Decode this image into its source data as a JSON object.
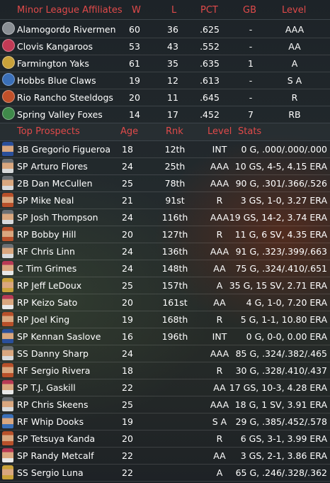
{
  "affiliates": {
    "headers": {
      "name": "Minor League Affiliates",
      "w": "W",
      "l": "L",
      "pct": "PCT",
      "gb": "GB",
      "level": "Level"
    },
    "rows": [
      {
        "name": "Alamogordo Rivermen",
        "w": "60",
        "l": "36",
        "pct": ".625",
        "gb": "-",
        "level": "AAA",
        "logo_color": "#8a8f94"
      },
      {
        "name": "Clovis Kangaroos",
        "w": "53",
        "l": "43",
        "pct": ".552",
        "gb": "-",
        "level": "AA",
        "logo_color": "#c23a55"
      },
      {
        "name": "Farmington Yaks",
        "w": "61",
        "l": "35",
        "pct": ".635",
        "gb": "1",
        "level": "A",
        "logo_color": "#c9a23a"
      },
      {
        "name": "Hobbs Blue Claws",
        "w": "19",
        "l": "12",
        "pct": ".613",
        "gb": "-",
        "level": "S A",
        "logo_color": "#3a6fb8"
      },
      {
        "name": "Rio Rancho Steeldogs",
        "w": "20",
        "l": "11",
        "pct": ".645",
        "gb": "-",
        "level": "R",
        "logo_color": "#c0502a"
      },
      {
        "name": "Spring Valley Foxes",
        "w": "14",
        "l": "17",
        "pct": ".452",
        "gb": "7",
        "level": "RB",
        "logo_color": "#3f8a4a"
      }
    ]
  },
  "prospects": {
    "headers": {
      "name": "Top Prospects",
      "age": "Age",
      "rank": "Rnk",
      "level": "Level",
      "stats": "Stats"
    },
    "rows": [
      {
        "name": "3B Gregorio Figueroa",
        "age": "18",
        "rank": "12th",
        "level": "INT",
        "stats": "0 G, .000/.000/.000",
        "cap": "#2a4f9a",
        "jersey": "#2a4f9a"
      },
      {
        "name": "SP Arturo Flores",
        "age": "24",
        "rank": "25th",
        "level": "AAA",
        "stats": "10 GS, 4-5, 4.15 ERA",
        "cap": "#6a6f74",
        "jersey": "#d8dadc"
      },
      {
        "name": "2B Dan McCullen",
        "age": "25",
        "rank": "78th",
        "level": "AAA",
        "stats": "90 G, .301/.366/.526",
        "cap": "#6a6f74",
        "jersey": "#d8dadc"
      },
      {
        "name": "SP Mike Neal",
        "age": "21",
        "rank": "91st",
        "level": "R",
        "stats": "3 GS, 1-0, 3.27 ERA",
        "cap": "#b8502a",
        "jersey": "#b8502a"
      },
      {
        "name": "SP Josh Thompson",
        "age": "24",
        "rank": "116th",
        "level": "AAA",
        "stats": "19 GS, 14-2, 3.74 ERA",
        "cap": "#6a6f74",
        "jersey": "#d8dadc"
      },
      {
        "name": "RP Bobby Hill",
        "age": "20",
        "rank": "127th",
        "level": "R",
        "stats": "11 G, 6 SV, 4.35 ERA",
        "cap": "#b8502a",
        "jersey": "#b8502a"
      },
      {
        "name": "RF Chris Linn",
        "age": "24",
        "rank": "136th",
        "level": "AAA",
        "stats": "91 G, .323/.399/.663",
        "cap": "#6a6f74",
        "jersey": "#d8dadc"
      },
      {
        "name": "C Tim Grimes",
        "age": "24",
        "rank": "148th",
        "level": "AA",
        "stats": "75 G, .324/.410/.651",
        "cap": "#b83a55",
        "jersey": "#e8e8e8"
      },
      {
        "name": "RP Jeff LeDoux",
        "age": "25",
        "rank": "157th",
        "level": "A",
        "stats": "35 G, 15 SV, 2.71 ERA",
        "cap": "#c9a23a",
        "jersey": "#c9a23a"
      },
      {
        "name": "RP Keizo Sato",
        "age": "20",
        "rank": "161st",
        "level": "AA",
        "stats": "4 G, 1-0, 7.20 ERA",
        "cap": "#b83a55",
        "jersey": "#e8e8e8"
      },
      {
        "name": "RP Joel King",
        "age": "19",
        "rank": "168th",
        "level": "R",
        "stats": "5 G, 1-1, 10.80 ERA",
        "cap": "#b8502a",
        "jersey": "#b8502a"
      },
      {
        "name": "SP Kennan Saslove",
        "age": "16",
        "rank": "196th",
        "level": "INT",
        "stats": "0 G, 0-0, 0.00 ERA",
        "cap": "#2a4f9a",
        "jersey": "#2a4f9a"
      },
      {
        "name": "SS Danny Sharp",
        "age": "24",
        "rank": "",
        "level": "AAA",
        "stats": "85 G, .324/.382/.465",
        "cap": "#6a6f74",
        "jersey": "#d8dadc"
      },
      {
        "name": "RF Sergio Rivera",
        "age": "18",
        "rank": "",
        "level": "R",
        "stats": "30 G, .328/.410/.437",
        "cap": "#b8502a",
        "jersey": "#b8502a"
      },
      {
        "name": "SP T.J. Gaskill",
        "age": "22",
        "rank": "",
        "level": "AA",
        "stats": "17 GS, 10-3, 4.28 ERA",
        "cap": "#b83a55",
        "jersey": "#e8e8e8"
      },
      {
        "name": "RP Chris Skeens",
        "age": "25",
        "rank": "",
        "level": "AAA",
        "stats": "18 G, 1 SV, 3.91 ERA",
        "cap": "#6a6f74",
        "jersey": "#d8dadc"
      },
      {
        "name": "RF Whip Dooks",
        "age": "19",
        "rank": "",
        "level": "S A",
        "stats": "29 G, .385/.452/.578",
        "cap": "#3a6fb8",
        "jersey": "#3a6fb8"
      },
      {
        "name": "SP Tetsuya Kanda",
        "age": "20",
        "rank": "",
        "level": "R",
        "stats": "6 GS, 3-1, 3.99 ERA",
        "cap": "#b8502a",
        "jersey": "#b8502a"
      },
      {
        "name": "SP Randy Metcalf",
        "age": "22",
        "rank": "",
        "level": "AA",
        "stats": "3 GS, 2-1, 3.86 ERA",
        "cap": "#b83a55",
        "jersey": "#e8e8e8"
      },
      {
        "name": "SS Sergio Luna",
        "age": "22",
        "rank": "",
        "level": "A",
        "stats": "65 G, .246/.328/.362",
        "cap": "#c9a23a",
        "jersey": "#c9a23a"
      }
    ]
  },
  "colors": {
    "header_text": "#e04a4a",
    "body_text": "#ffffff"
  }
}
